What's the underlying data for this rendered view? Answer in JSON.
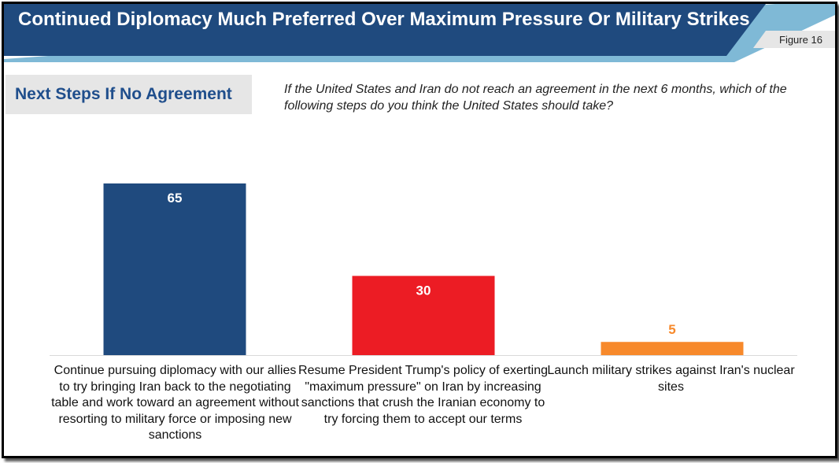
{
  "header": {
    "title": "Continued Diplomacy Much Preferred Over Maximum Pressure Or Military Strikes",
    "figure_label": "Figure 16"
  },
  "subhead": "Next Steps If No Agreement",
  "question": "If the United States and Iran do not reach an agreement in the next 6 months, which of the following steps do you think the United States should take?",
  "colors": {
    "banner": "#1f4a7e",
    "banner_stripe": "#7fb9d6",
    "subhead_text": "#1f4e8c"
  },
  "chart_data": {
    "type": "bar",
    "categories": [
      "Continue pursuing diplomacy with our allies to try bringing Iran back to the negotiating table and work toward an agreement without resorting to military force or imposing new sanctions",
      "Resume President Trump's policy of exerting \"maximum pressure\" on Iran by increasing sanctions that crush the Iranian economy to try forcing them to accept our terms",
      "Launch military strikes against Iran's nuclear sites"
    ],
    "values": [
      65,
      30,
      5
    ],
    "bar_colors": [
      "#1f4a7e",
      "#ec1c24",
      "#f7892b"
    ],
    "label_colors": [
      "#ffffff",
      "#ffffff",
      "#f7892b"
    ],
    "ylim": [
      0,
      70
    ],
    "grid": false
  }
}
